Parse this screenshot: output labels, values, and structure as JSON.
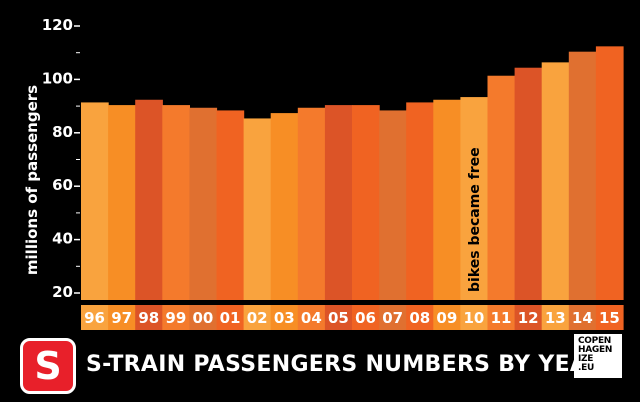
{
  "chart_data": {
    "type": "bar",
    "title": "S-TRAIN PASSENGERS NUMBERS BY YEAR",
    "ylabel": "millions of passengers",
    "xlabel": "",
    "ylim": [
      20,
      120
    ],
    "yticks": [
      "20",
      "40",
      "60",
      "80",
      "100",
      "120"
    ],
    "categories": [
      "96",
      "97",
      "98",
      "99",
      "00",
      "01",
      "02",
      "03",
      "04",
      "05",
      "06",
      "07",
      "08",
      "09",
      "10",
      "11",
      "12",
      "13",
      "14",
      "15"
    ],
    "values": [
      94,
      93,
      95,
      93,
      92,
      91,
      88,
      90,
      92,
      93,
      93,
      91,
      94,
      95,
      96,
      104,
      107,
      109,
      113,
      115
    ],
    "colors": [
      "#f9a33e",
      "#f78e25",
      "#dc5427",
      "#f47a2c",
      "#e07030",
      "#f06322",
      "#f9a33e",
      "#f78e25",
      "#f47a2c",
      "#dc5427",
      "#f06322",
      "#e07030",
      "#f06322",
      "#f78e25",
      "#f9a33e",
      "#f47a2c",
      "#dc5427",
      "#f9a33e",
      "#e07030",
      "#f06322"
    ],
    "label_band_colors": [
      "#f9a33e",
      "#f78e25",
      "#dc5427",
      "#f47a2c",
      "#e07030",
      "#f06322",
      "#f9a33e",
      "#f78e25",
      "#f47a2c",
      "#dc5427",
      "#f06322",
      "#e07030",
      "#f06322",
      "#f78e25",
      "#f9a33e",
      "#f47a2c",
      "#dc5427",
      "#f9a33e",
      "#e07030",
      "#f06322"
    ],
    "annotations": [
      {
        "category": "10",
        "text": "bikes became free"
      }
    ],
    "grid": false
  },
  "footer": {
    "logo_letter": "S",
    "brand_lines": [
      "COPEN",
      "HAGEN",
      "IZE",
      ".EU"
    ]
  },
  "colors": {
    "background": "#000000",
    "axis_text": "#ffffff",
    "logo_red": "#e8202a"
  }
}
